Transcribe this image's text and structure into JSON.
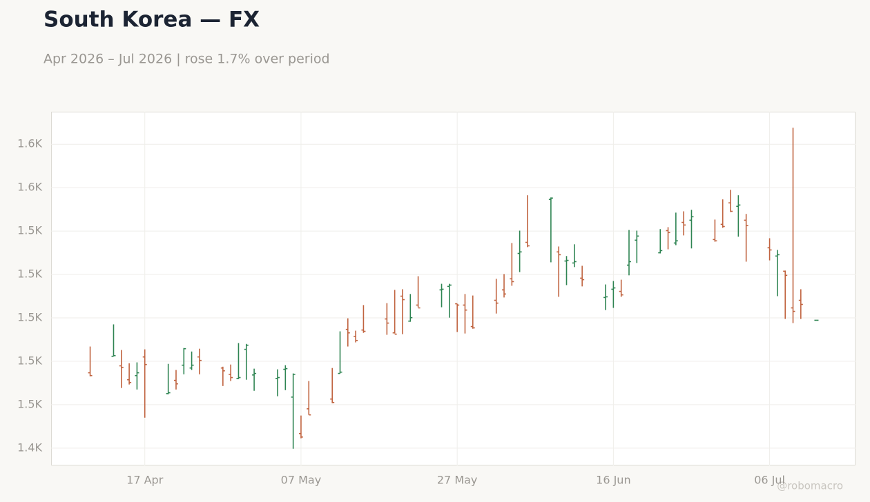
{
  "chart_data": {
    "type": "ohlc",
    "title": "South Korea — FX",
    "subtitle": "Apr 2026 – Jul 2026 | rose 1.7% over period",
    "watermark": "@robomacro",
    "up_color": "#2e8452",
    "down_color": "#c0633f",
    "grid": true,
    "x": [
      "2026-04-10",
      "2026-04-13",
      "2026-04-14",
      "2026-04-15",
      "2026-04-16",
      "2026-04-17",
      "2026-04-20",
      "2026-04-21",
      "2026-04-22",
      "2026-04-23",
      "2026-04-24",
      "2026-04-27",
      "2026-04-28",
      "2026-04-29",
      "2026-04-30",
      "2026-05-01",
      "2026-05-04",
      "2026-05-05",
      "2026-05-06",
      "2026-05-07",
      "2026-05-08",
      "2026-05-11",
      "2026-05-12",
      "2026-05-13",
      "2026-05-14",
      "2026-05-15",
      "2026-05-18",
      "2026-05-19",
      "2026-05-20",
      "2026-05-21",
      "2026-05-22",
      "2026-05-25",
      "2026-05-26",
      "2026-05-27",
      "2026-05-28",
      "2026-05-29",
      "2026-06-01",
      "2026-06-02",
      "2026-06-03",
      "2026-06-04",
      "2026-06-05",
      "2026-06-08",
      "2026-06-09",
      "2026-06-10",
      "2026-06-11",
      "2026-06-12",
      "2026-06-15",
      "2026-06-16",
      "2026-06-17",
      "2026-06-18",
      "2026-06-19",
      "2026-06-22",
      "2026-06-23",
      "2026-06-24",
      "2026-06-25",
      "2026-06-26",
      "2026-06-29",
      "2026-06-30",
      "2026-07-01",
      "2026-07-02",
      "2026-07-03",
      "2026-07-06",
      "2026-07-07",
      "2026-07-08",
      "2026-07-09",
      "2026-07-10",
      "2026-07-12"
    ],
    "open": [
      1474.7,
      1482.3,
      1477.9,
      1471.5,
      1473.4,
      1482.0,
      1465.1,
      1471.2,
      1478.2,
      1476.9,
      1482.0,
      1476.9,
      1474.0,
      1472.1,
      1485.5,
      1473.7,
      1472.1,
      1476.3,
      1463.5,
      1446.7,
      1458.1,
      1462.6,
      1474.4,
      1494.7,
      1491.5,
      1494.4,
      1499.5,
      1493.1,
      1510.0,
      1498.5,
      1505.9,
      1512.9,
      1514.5,
      1506.5,
      1505.9,
      1496.0,
      1508.1,
      1512.9,
      1518.0,
      1529.7,
      1534.8,
      1554.6,
      1530.4,
      1526.2,
      1525.3,
      1518.3,
      1509.4,
      1513.2,
      1512.2,
      1524.3,
      1535.8,
      1530.0,
      1540.2,
      1534.5,
      1544.0,
      1545.0,
      1536.1,
      1543.1,
      1553.0,
      1551.4,
      1545.0,
      1532.3,
      1528.5,
      1521.5,
      1504.6,
      1508.1,
      1498.9
    ],
    "high": [
      1486.8,
      1497.0,
      1485.2,
      1479.1,
      1479.5,
      1485.5,
      1478.8,
      1476.0,
      1486.1,
      1484.5,
      1485.8,
      1477.5,
      1478.5,
      1488.4,
      1488.0,
      1476.6,
      1476.3,
      1478.2,
      1474.4,
      1455.0,
      1470.9,
      1476.9,
      1493.8,
      1499.8,
      1494.1,
      1505.9,
      1506.8,
      1512.9,
      1513.2,
      1511.0,
      1519.2,
      1515.7,
      1515.7,
      1506.5,
      1511.0,
      1510.3,
      1518.0,
      1520.2,
      1534.5,
      1540.2,
      1556.5,
      1555.5,
      1532.9,
      1528.5,
      1533.9,
      1524.0,
      1515.4,
      1517.0,
      1517.6,
      1540.5,
      1540.2,
      1540.9,
      1541.8,
      1548.5,
      1549.1,
      1549.8,
      1545.3,
      1554.6,
      1559.0,
      1556.5,
      1547.9,
      1536.7,
      1531.3,
      1521.8,
      1587.6,
      1513.2,
      1498.9
    ],
    "low": [
      1473.1,
      1482.3,
      1467.7,
      1469.3,
      1467.0,
      1454.0,
      1464.8,
      1467.0,
      1474.0,
      1476.0,
      1474.0,
      1468.6,
      1470.9,
      1471.8,
      1471.5,
      1466.4,
      1463.9,
      1466.7,
      1439.7,
      1444.5,
      1455.3,
      1460.7,
      1474.4,
      1486.8,
      1488.7,
      1493.1,
      1492.2,
      1492.8,
      1492.5,
      1498.2,
      1504.9,
      1504.9,
      1500.1,
      1493.5,
      1492.8,
      1495.0,
      1502.0,
      1509.4,
      1514.8,
      1521.1,
      1532.6,
      1525.6,
      1509.7,
      1515.1,
      1523.4,
      1514.5,
      1503.6,
      1504.6,
      1509.7,
      1519.6,
      1525.3,
      1529.7,
      1531.6,
      1533.5,
      1538.0,
      1532.0,
      1535.1,
      1541.5,
      1548.8,
      1537.4,
      1525.9,
      1526.5,
      1510.0,
      1499.5,
      1497.6,
      1499.5,
      1498.9
    ],
    "close": [
      1473.4,
      1482.6,
      1477.2,
      1470.2,
      1474.7,
      1478.5,
      1465.5,
      1469.6,
      1485.8,
      1478.2,
      1480.4,
      1475.6,
      1472.5,
      1472.5,
      1487.4,
      1474.4,
      1472.5,
      1476.6,
      1474.0,
      1445.1,
      1455.3,
      1461.0,
      1475.0,
      1493.1,
      1489.6,
      1493.8,
      1497.6,
      1492.5,
      1508.4,
      1500.1,
      1504.6,
      1513.2,
      1515.1,
      1505.9,
      1503.6,
      1495.4,
      1506.8,
      1511.0,
      1516.7,
      1530.4,
      1533.2,
      1555.2,
      1529.1,
      1526.5,
      1525.9,
      1517.6,
      1509.7,
      1513.8,
      1510.6,
      1525.9,
      1537.7,
      1531.0,
      1539.3,
      1535.5,
      1542.8,
      1546.6,
      1535.5,
      1542.1,
      1549.1,
      1552.0,
      1542.5,
      1531.3,
      1529.1,
      1519.6,
      1503.0,
      1506.2,
      1498.9
    ],
    "xlim": [
      "2026-04-05",
      "2026-07-17"
    ],
    "xticks": [
      {
        "value": "2026-04-17",
        "label": "17 Apr"
      },
      {
        "value": "2026-05-07",
        "label": "07 May"
      },
      {
        "value": "2026-05-27",
        "label": "27 May"
      },
      {
        "value": "2026-06-16",
        "label": "16 Jun"
      },
      {
        "value": "2026-07-06",
        "label": "06 Jul"
      }
    ],
    "ylim": [
      1432,
      1595
    ],
    "yticks": [
      {
        "value": 1440,
        "label": "1.4K"
      },
      {
        "value": 1460,
        "label": "1.5K"
      },
      {
        "value": 1480,
        "label": "1.5K"
      },
      {
        "value": 1500,
        "label": "1.5K"
      },
      {
        "value": 1520,
        "label": "1.5K"
      },
      {
        "value": 1540,
        "label": "1.5K"
      },
      {
        "value": 1560,
        "label": "1.6K"
      },
      {
        "value": 1580,
        "label": "1.6K"
      }
    ]
  }
}
